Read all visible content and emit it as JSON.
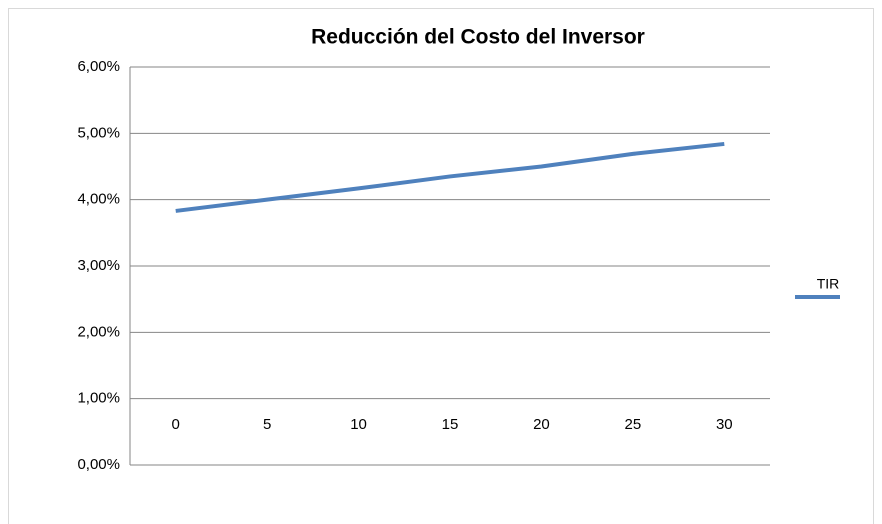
{
  "chart_data": {
    "type": "line",
    "title": "Reducción del Costo del Inversor",
    "categories": [
      "0",
      "5",
      "10",
      "15",
      "20",
      "25",
      "30"
    ],
    "series": [
      {
        "name": "TIR",
        "color": "#4f81bd",
        "values": [
          3.83,
          4.0,
          4.17,
          4.35,
          4.5,
          4.69,
          4.84
        ]
      }
    ],
    "ylim": [
      0,
      6
    ],
    "yticks": [
      {
        "value": 0,
        "label": "0,00%"
      },
      {
        "value": 1,
        "label": "1,00%"
      },
      {
        "value": 2,
        "label": "2,00%"
      },
      {
        "value": 3,
        "label": "3,00%"
      },
      {
        "value": 4,
        "label": "4,00%"
      },
      {
        "value": 5,
        "label": "5,00%"
      },
      {
        "value": 6,
        "label": "6,00%"
      }
    ],
    "grid": true,
    "legend": "right"
  }
}
